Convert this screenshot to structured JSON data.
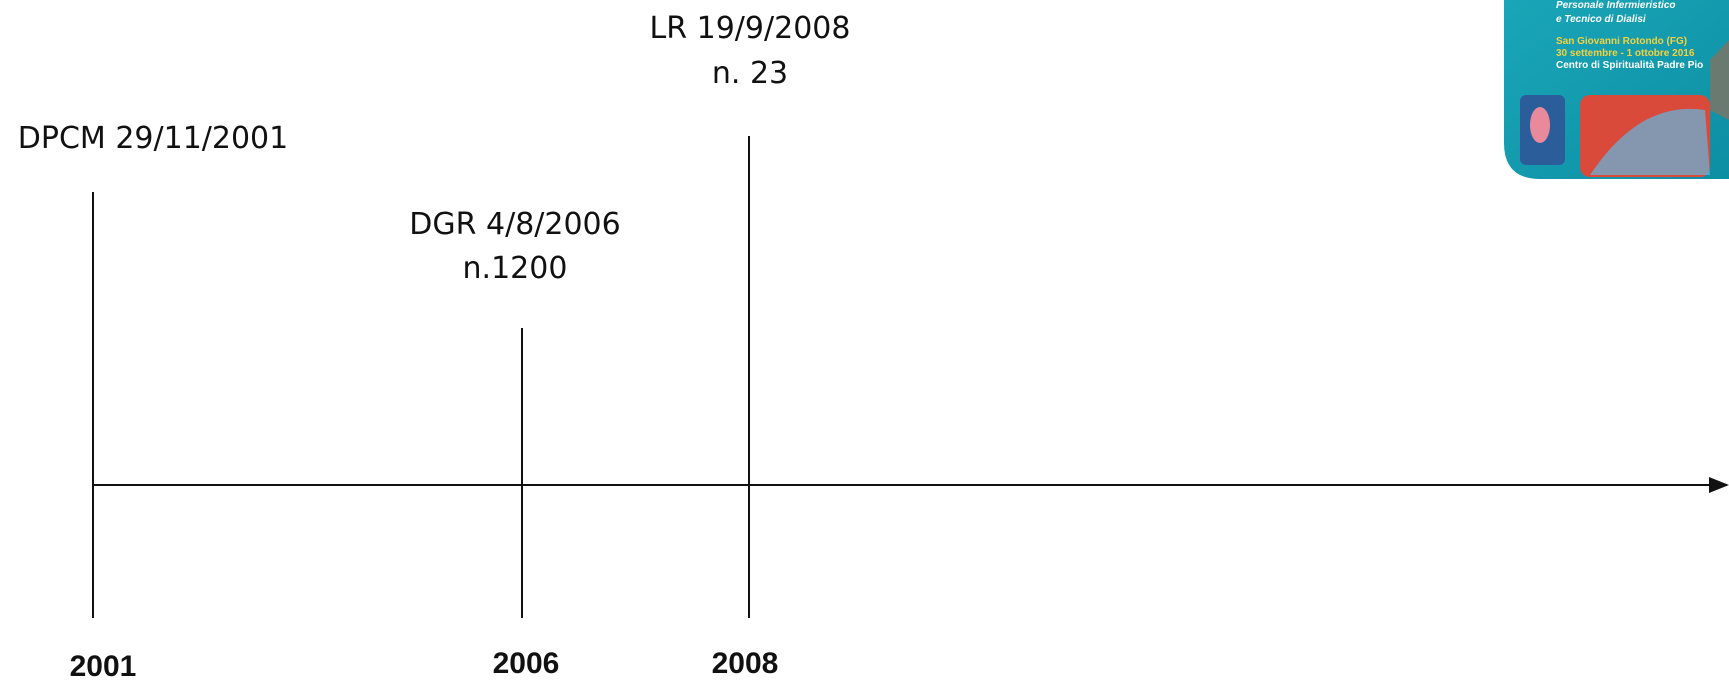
{
  "timeline": {
    "events": [
      {
        "label": [
          "DPCM 29/11/2001"
        ],
        "year": "2001"
      },
      {
        "label": [
          "DGR 4/8/2006",
          "n.1200"
        ],
        "year": "2006"
      },
      {
        "label": [
          "LR 19/9/2008",
          "n. 23"
        ],
        "year": "2008"
      }
    ]
  },
  "logo": {
    "lines": [
      "Personale Infermieristico",
      "e Tecnico di Dialisi",
      "San Giovanni Rotondo (FG)",
      "30 settembre - 1 ottobre 2016",
      "Centro di Spiritualità Padre Pio"
    ]
  }
}
